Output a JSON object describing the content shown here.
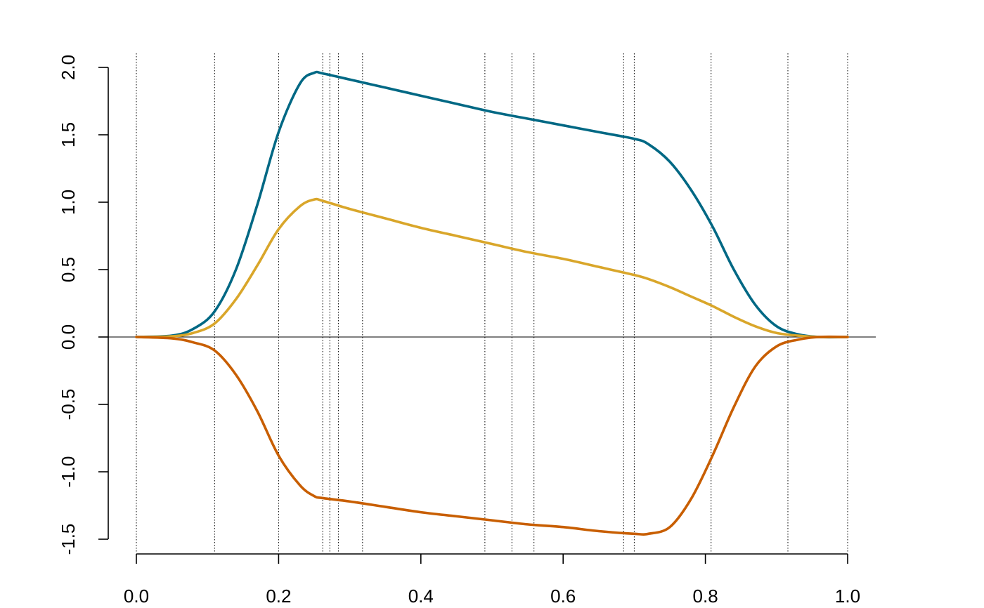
{
  "chart_data": {
    "type": "line",
    "title": "",
    "xlabel": "",
    "ylabel": "",
    "xlim": [
      0.0,
      1.0
    ],
    "ylim": [
      -1.5,
      2.0
    ],
    "x_ticks": [
      "0.0",
      "0.2",
      "0.4",
      "0.6",
      "0.8",
      "1.0"
    ],
    "y_ticks": [
      "-1.5",
      "-1.0",
      "-0.5",
      "0.0",
      "0.5",
      "1.0",
      "1.5",
      "2.0"
    ],
    "grid": false,
    "reference_lines": {
      "horizontal": [
        0.0
      ],
      "vertical": [
        0.0,
        0.11,
        0.2,
        0.262,
        0.272,
        0.284,
        0.318,
        0.49,
        0.528,
        0.559,
        0.685,
        0.7,
        0.808,
        0.916,
        1.0
      ]
    },
    "series": [
      {
        "color": "#006884",
        "x": [
          0.0,
          0.05,
          0.08,
          0.11,
          0.14,
          0.17,
          0.2,
          0.23,
          0.25,
          0.262,
          0.3,
          0.35,
          0.4,
          0.45,
          0.5,
          0.55,
          0.6,
          0.65,
          0.7,
          0.72,
          0.75,
          0.78,
          0.81,
          0.84,
          0.87,
          0.9,
          0.93,
          0.96,
          1.0
        ],
        "y": [
          0.0,
          0.01,
          0.06,
          0.19,
          0.5,
          0.98,
          1.52,
          1.88,
          1.96,
          1.955,
          1.91,
          1.85,
          1.79,
          1.73,
          1.67,
          1.62,
          1.57,
          1.52,
          1.47,
          1.43,
          1.3,
          1.09,
          0.82,
          0.5,
          0.24,
          0.08,
          0.02,
          0.0,
          0.0
        ]
      },
      {
        "color": "#D9A62A",
        "x": [
          0.0,
          0.05,
          0.08,
          0.11,
          0.14,
          0.17,
          0.2,
          0.23,
          0.25,
          0.262,
          0.3,
          0.35,
          0.4,
          0.45,
          0.5,
          0.55,
          0.6,
          0.65,
          0.7,
          0.72,
          0.75,
          0.78,
          0.81,
          0.84,
          0.87,
          0.9,
          0.93,
          0.96,
          1.0
        ],
        "y": [
          0.0,
          0.005,
          0.03,
          0.1,
          0.28,
          0.53,
          0.8,
          0.97,
          1.02,
          1.01,
          0.95,
          0.88,
          0.81,
          0.75,
          0.69,
          0.63,
          0.58,
          0.52,
          0.46,
          0.43,
          0.37,
          0.3,
          0.23,
          0.15,
          0.08,
          0.03,
          0.01,
          0.0,
          0.0
        ]
      },
      {
        "color": "#C85E00",
        "x": [
          0.0,
          0.05,
          0.08,
          0.11,
          0.14,
          0.17,
          0.2,
          0.23,
          0.25,
          0.262,
          0.3,
          0.35,
          0.4,
          0.45,
          0.5,
          0.55,
          0.6,
          0.65,
          0.7,
          0.72,
          0.75,
          0.78,
          0.81,
          0.84,
          0.87,
          0.9,
          0.93,
          0.96,
          1.0
        ],
        "y": [
          0.0,
          -0.01,
          -0.04,
          -0.1,
          -0.28,
          -0.55,
          -0.88,
          -1.1,
          -1.18,
          -1.195,
          -1.22,
          -1.26,
          -1.3,
          -1.33,
          -1.36,
          -1.39,
          -1.41,
          -1.44,
          -1.46,
          -1.46,
          -1.41,
          -1.2,
          -0.88,
          -0.52,
          -0.22,
          -0.07,
          -0.02,
          0.0,
          0.0
        ]
      }
    ]
  }
}
